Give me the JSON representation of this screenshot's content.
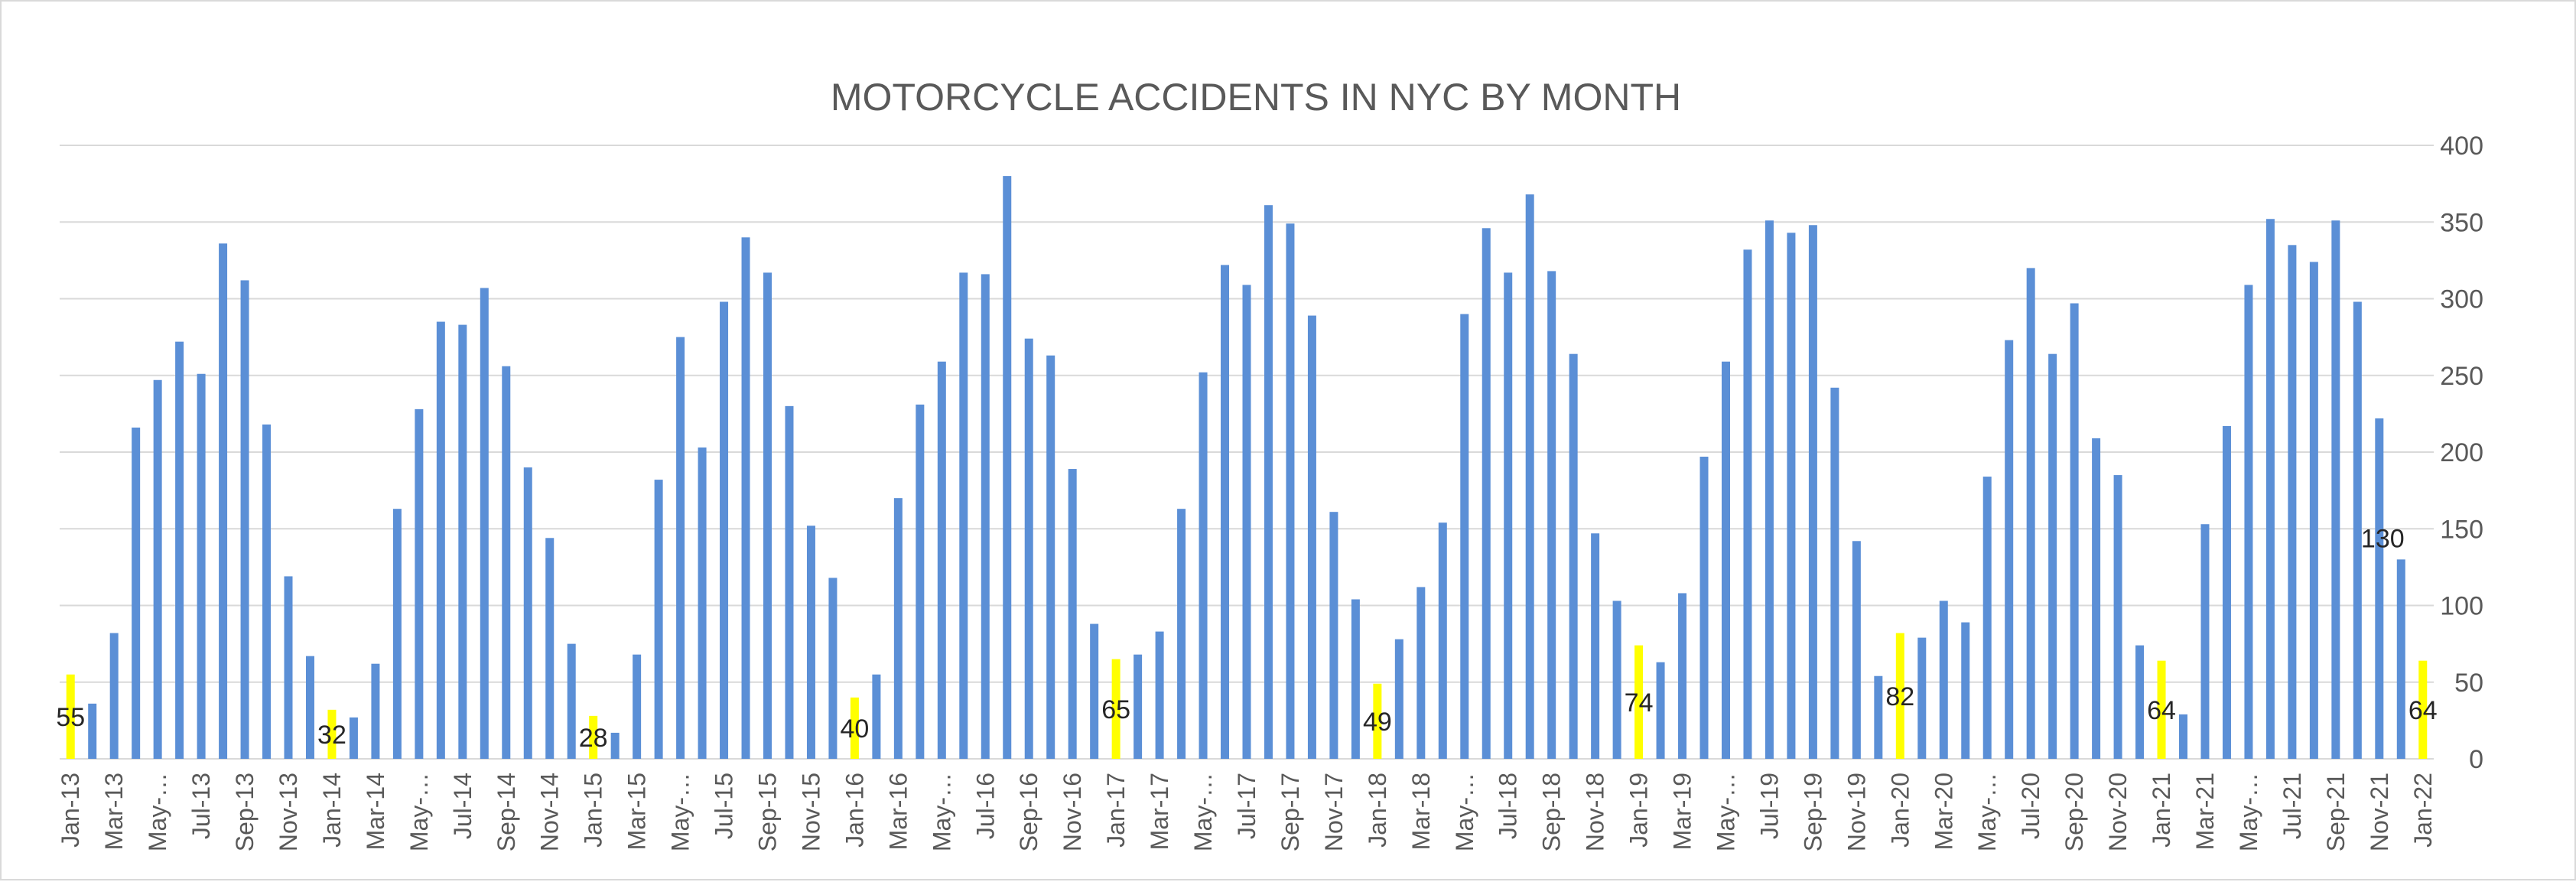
{
  "chart_data": {
    "type": "bar",
    "title": "MOTORCYCLE ACCIDENTS IN NYC BY MONTH",
    "xlabel": "",
    "ylabel": "",
    "ylim": [
      0,
      400
    ],
    "yticks": [
      0,
      50,
      100,
      150,
      200,
      250,
      300,
      350,
      400
    ],
    "y_axis_side": "right",
    "grid": true,
    "legend": "none",
    "colors": {
      "default_bar": "#5b8fd6",
      "highlight_bar": "#ffff00",
      "grid": "#d9d9d9",
      "text": "#595959"
    },
    "categories": [
      "Jan-13",
      "Feb-13",
      "Mar-13",
      "Apr-13",
      "May-13",
      "Jun-13",
      "Jul-13",
      "Aug-13",
      "Sep-13",
      "Oct-13",
      "Nov-13",
      "Dec-13",
      "Jan-14",
      "Feb-14",
      "Mar-14",
      "Apr-14",
      "May-14",
      "Jun-14",
      "Jul-14",
      "Aug-14",
      "Sep-14",
      "Oct-14",
      "Nov-14",
      "Dec-14",
      "Jan-15",
      "Feb-15",
      "Mar-15",
      "Apr-15",
      "May-15",
      "Jun-15",
      "Jul-15",
      "Aug-15",
      "Sep-15",
      "Oct-15",
      "Nov-15",
      "Dec-15",
      "Jan-16",
      "Feb-16",
      "Mar-16",
      "Apr-16",
      "May-16",
      "Jun-16",
      "Jul-16",
      "Aug-16",
      "Sep-16",
      "Oct-16",
      "Nov-16",
      "Dec-16",
      "Jan-17",
      "Feb-17",
      "Mar-17",
      "Apr-17",
      "May-17",
      "Jun-17",
      "Jul-17",
      "Aug-17",
      "Sep-17",
      "Oct-17",
      "Nov-17",
      "Dec-17",
      "Jan-18",
      "Feb-18",
      "Mar-18",
      "Apr-18",
      "May-18",
      "Jun-18",
      "Jul-18",
      "Aug-18",
      "Sep-18",
      "Oct-18",
      "Nov-18",
      "Dec-18",
      "Jan-19",
      "Feb-19",
      "Mar-19",
      "Apr-19",
      "May-19",
      "Jun-19",
      "Jul-19",
      "Aug-19",
      "Sep-19",
      "Oct-19",
      "Nov-19",
      "Dec-19",
      "Jan-20",
      "Feb-20",
      "Mar-20",
      "Apr-20",
      "May-20",
      "Jun-20",
      "Jul-20",
      "Aug-20",
      "Sep-20",
      "Oct-20",
      "Nov-20",
      "Dec-20",
      "Jan-21",
      "Feb-21",
      "Mar-21",
      "Apr-21",
      "May-21",
      "Jun-21",
      "Jul-21",
      "Aug-21",
      "Sep-21",
      "Oct-21",
      "Nov-21",
      "Dec-21",
      "Jan-22"
    ],
    "tick_labels": [
      "Jan-13",
      "Mar-13",
      "May-…",
      "Jul-13",
      "Sep-13",
      "Nov-13",
      "Jan-14",
      "Mar-14",
      "May-…",
      "Jul-14",
      "Sep-14",
      "Nov-14",
      "Jan-15",
      "Mar-15",
      "May-…",
      "Jul-15",
      "Sep-15",
      "Nov-15",
      "Jan-16",
      "Mar-16",
      "May-…",
      "Jul-16",
      "Sep-16",
      "Nov-16",
      "Jan-17",
      "Mar-17",
      "May-…",
      "Jul-17",
      "Sep-17",
      "Nov-17",
      "Jan-18",
      "Mar-18",
      "May-…",
      "Jul-18",
      "Sep-18",
      "Nov-18",
      "Jan-19",
      "Mar-19",
      "May-…",
      "Jul-19",
      "Sep-19",
      "Nov-19",
      "Jan-20",
      "Mar-20",
      "May-…",
      "Jul-20",
      "Sep-20",
      "Nov-20",
      "Jan-21",
      "Mar-21",
      "May-…",
      "Jul-21",
      "Sep-21",
      "Nov-21",
      "Jan-22"
    ],
    "values": [
      55,
      36,
      82,
      216,
      247,
      272,
      251,
      336,
      312,
      218,
      119,
      67,
      32,
      27,
      62,
      163,
      228,
      285,
      283,
      307,
      256,
      190,
      144,
      75,
      28,
      17,
      68,
      182,
      275,
      203,
      298,
      340,
      317,
      230,
      152,
      118,
      40,
      55,
      170,
      231,
      259,
      317,
      316,
      380,
      274,
      263,
      189,
      88,
      65,
      68,
      83,
      163,
      252,
      322,
      309,
      361,
      349,
      289,
      161,
      104,
      49,
      78,
      112,
      154,
      290,
      346,
      317,
      368,
      318,
      264,
      147,
      103,
      74,
      63,
      108,
      197,
      259,
      332,
      351,
      343,
      348,
      242,
      142,
      54,
      82,
      79,
      103,
      89,
      184,
      273,
      320,
      264,
      297,
      209,
      185,
      74,
      64,
      29,
      153,
      217,
      309,
      352,
      335,
      324,
      351,
      298,
      222,
      130,
      64
    ],
    "highlighted_categories": [
      "Jan-13",
      "Jan-14",
      "Jan-15",
      "Jan-16",
      "Jan-17",
      "Jan-18",
      "Jan-19",
      "Jan-20",
      "Jan-21",
      "Jan-22"
    ],
    "data_labels": [
      {
        "category": "Jan-13",
        "text": "55"
      },
      {
        "category": "Jan-14",
        "text": "32"
      },
      {
        "category": "Jan-15",
        "text": "28"
      },
      {
        "category": "Jan-16",
        "text": "40"
      },
      {
        "category": "Jan-17",
        "text": "65"
      },
      {
        "category": "Jan-18",
        "text": "49"
      },
      {
        "category": "Jan-19",
        "text": "74"
      },
      {
        "category": "Jan-20",
        "text": "82"
      },
      {
        "category": "Jan-21",
        "text": "64"
      },
      {
        "category": "Dec-21",
        "text": "130"
      },
      {
        "category": "Jan-22",
        "text": "64"
      }
    ]
  }
}
